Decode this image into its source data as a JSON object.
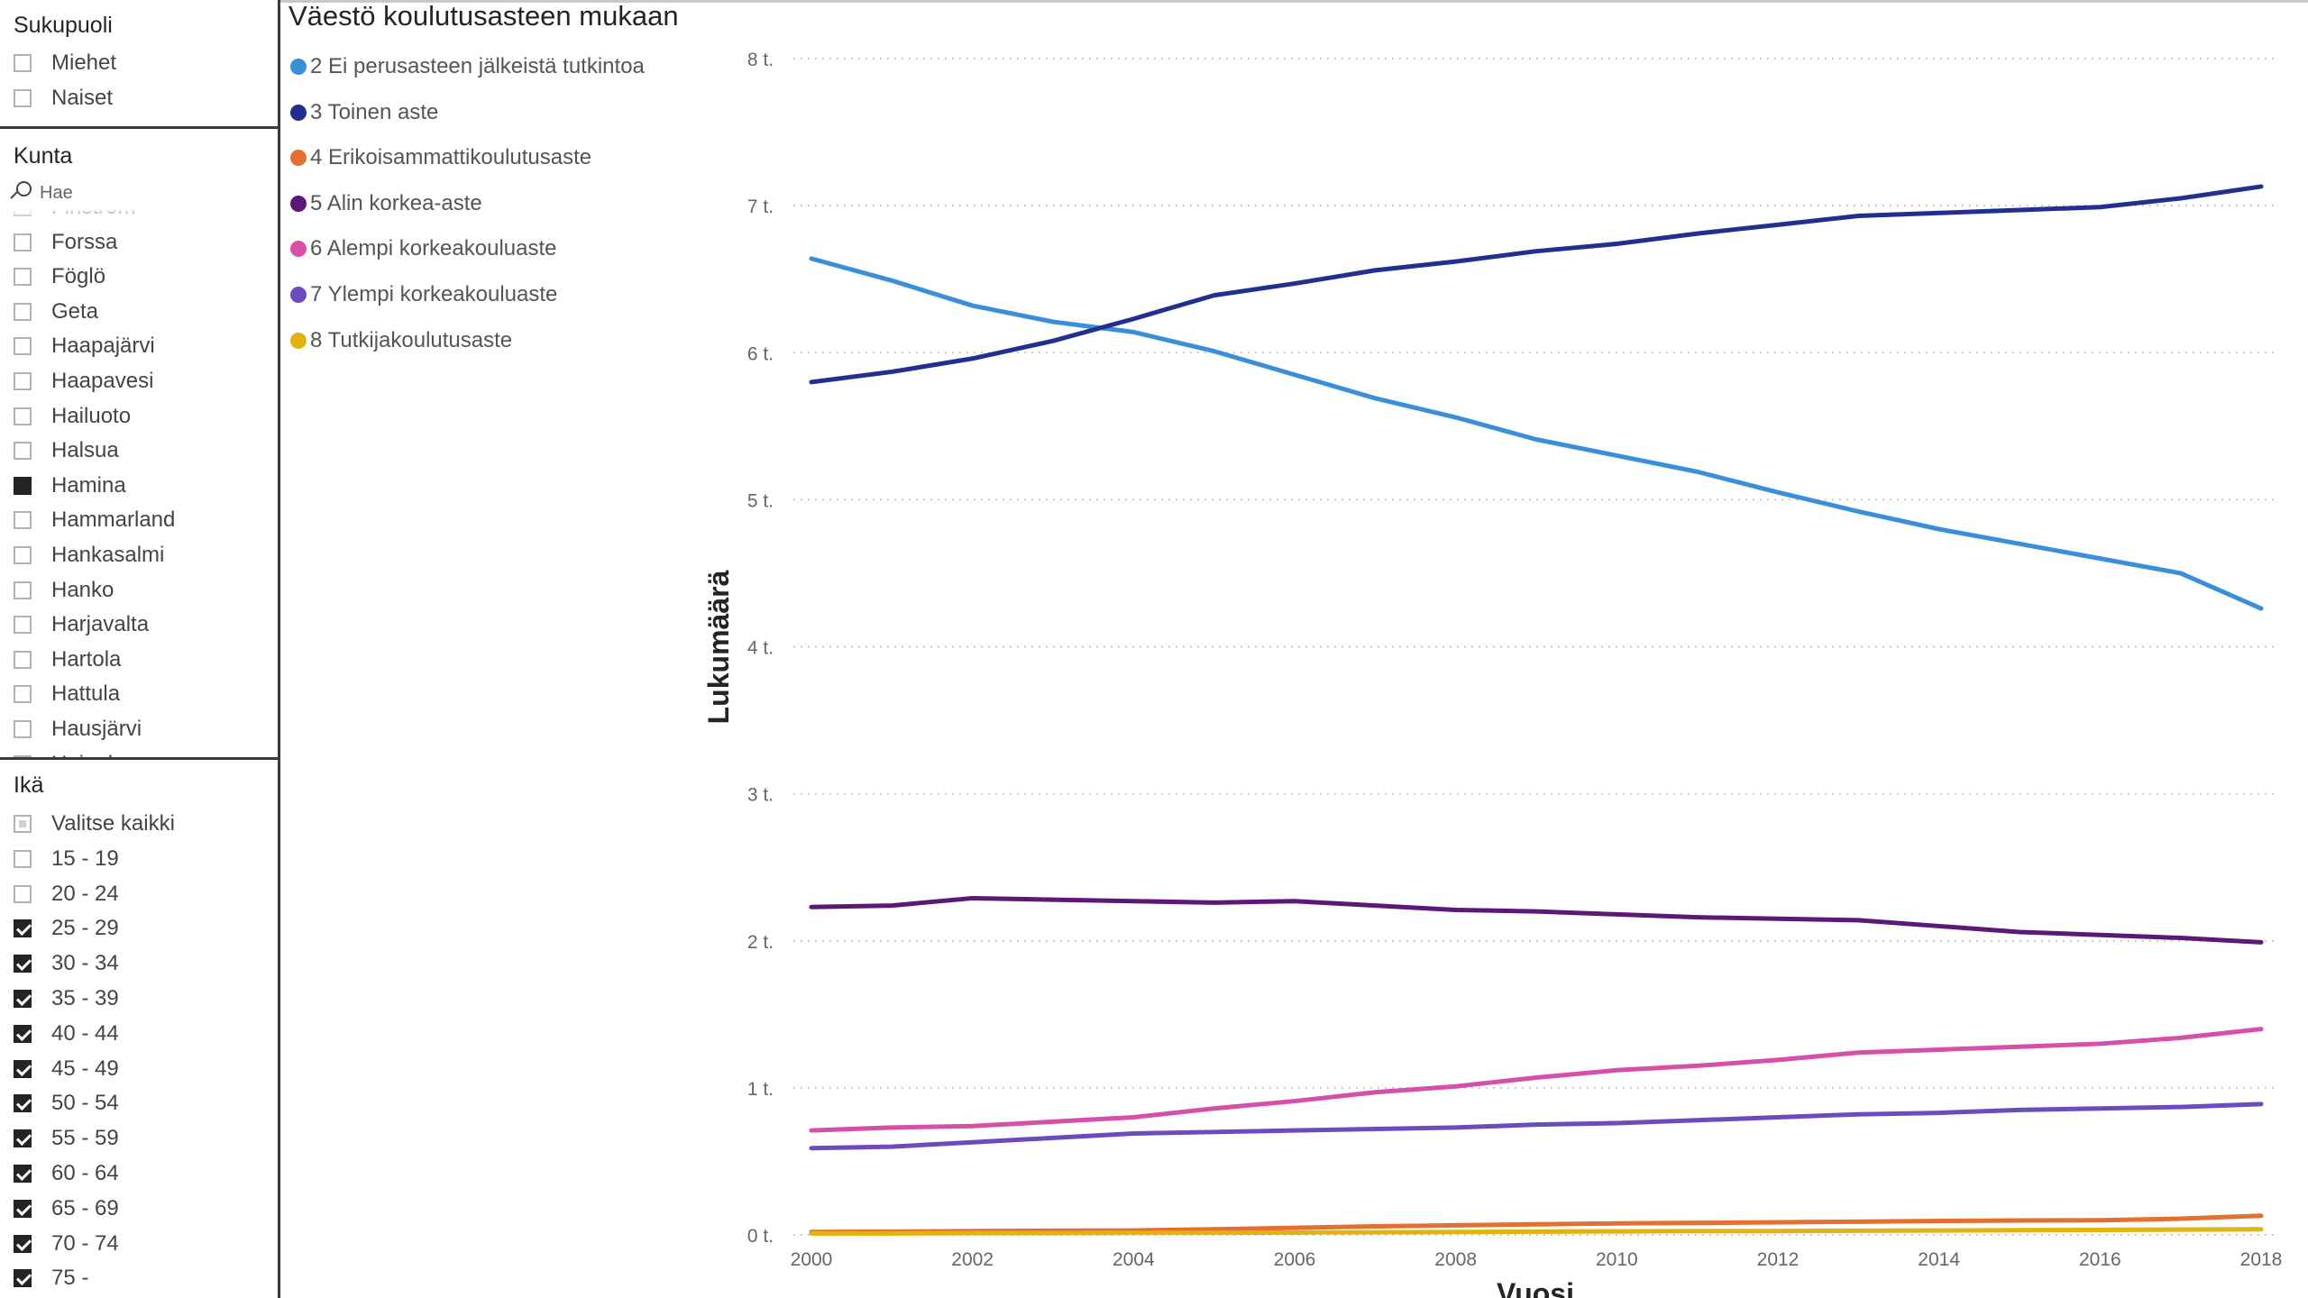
{
  "slicers": {
    "gender": {
      "title": "Sukupuoli",
      "items": [
        {
          "label": "Miehet",
          "state": "unchecked"
        },
        {
          "label": "Naiset",
          "state": "unchecked"
        }
      ]
    },
    "municipality": {
      "title": "Kunta",
      "search_placeholder": "Hae",
      "items": [
        {
          "label": "Finström",
          "state": "unchecked"
        },
        {
          "label": "Forssa",
          "state": "unchecked"
        },
        {
          "label": "Föglö",
          "state": "unchecked"
        },
        {
          "label": "Geta",
          "state": "unchecked"
        },
        {
          "label": "Haapajärvi",
          "state": "unchecked"
        },
        {
          "label": "Haapavesi",
          "state": "unchecked"
        },
        {
          "label": "Hailuoto",
          "state": "unchecked"
        },
        {
          "label": "Halsua",
          "state": "unchecked"
        },
        {
          "label": "Hamina",
          "state": "selected"
        },
        {
          "label": "Hammarland",
          "state": "unchecked"
        },
        {
          "label": "Hankasalmi",
          "state": "unchecked"
        },
        {
          "label": "Hanko",
          "state": "unchecked"
        },
        {
          "label": "Harjavalta",
          "state": "unchecked"
        },
        {
          "label": "Hartola",
          "state": "unchecked"
        },
        {
          "label": "Hattula",
          "state": "unchecked"
        },
        {
          "label": "Hausjärvi",
          "state": "unchecked"
        },
        {
          "label": "Heinola",
          "state": "unchecked"
        }
      ]
    },
    "age": {
      "title": "Ikä",
      "items": [
        {
          "label": "Valitse kaikki",
          "state": "partial"
        },
        {
          "label": "15 - 19",
          "state": "unchecked"
        },
        {
          "label": "20 - 24",
          "state": "unchecked"
        },
        {
          "label": "25 - 29",
          "state": "checked"
        },
        {
          "label": "30 - 34",
          "state": "checked"
        },
        {
          "label": "35 - 39",
          "state": "checked"
        },
        {
          "label": "40 - 44",
          "state": "checked"
        },
        {
          "label": "45 - 49",
          "state": "checked"
        },
        {
          "label": "50 - 54",
          "state": "checked"
        },
        {
          "label": "55 - 59",
          "state": "checked"
        },
        {
          "label": "60 - 64",
          "state": "checked"
        },
        {
          "label": "65 - 69",
          "state": "checked"
        },
        {
          "label": "70 - 74",
          "state": "checked"
        },
        {
          "label": "75 -",
          "state": "checked"
        }
      ]
    }
  },
  "chart_data": {
    "type": "line",
    "title": "Väestö koulutusasteen mukaan",
    "xlabel": "Vuosi",
    "ylabel": "Lukumäärä",
    "x": [
      2000,
      2001,
      2002,
      2003,
      2004,
      2005,
      2006,
      2007,
      2008,
      2009,
      2010,
      2011,
      2012,
      2013,
      2014,
      2015,
      2016,
      2017,
      2018
    ],
    "x_ticks": [
      "2000",
      "2002",
      "2004",
      "2006",
      "2008",
      "2010",
      "2012",
      "2014",
      "2016",
      "2018"
    ],
    "ylim": [
      0,
      8000
    ],
    "y_ticks": [
      {
        "value": 0,
        "label": "0 t."
      },
      {
        "value": 1000,
        "label": "1 t."
      },
      {
        "value": 2000,
        "label": "2 t."
      },
      {
        "value": 3000,
        "label": "3 t."
      },
      {
        "value": 4000,
        "label": "4 t."
      },
      {
        "value": 5000,
        "label": "5 t."
      },
      {
        "value": 6000,
        "label": "6 t."
      },
      {
        "value": 7000,
        "label": "7 t."
      },
      {
        "value": 8000,
        "label": "8 t."
      }
    ],
    "grid": true,
    "legend_position": "top-left",
    "series": [
      {
        "name": "2 Ei perusasteen jälkeistä tutkintoa",
        "color": "#3a8fdb",
        "values": [
          6640,
          6490,
          6320,
          6210,
          6140,
          6010,
          5850,
          5690,
          5560,
          5410,
          5300,
          5190,
          5050,
          4920,
          4800,
          4700,
          4600,
          4500,
          4260
        ]
      },
      {
        "name": "3 Toinen aste",
        "color": "#232f8e",
        "values": [
          5800,
          5870,
          5960,
          6080,
          6230,
          6390,
          6470,
          6560,
          6620,
          6690,
          6740,
          6810,
          6870,
          6930,
          6950,
          6970,
          6990,
          7050,
          7130
        ]
      },
      {
        "name": "4 Erikoisammattikoulutusaste",
        "color": "#e4702f",
        "values": [
          20,
          22,
          26,
          28,
          30,
          38,
          48,
          58,
          65,
          72,
          78,
          82,
          86,
          90,
          95,
          98,
          100,
          110,
          130
        ]
      },
      {
        "name": "5 Alin korkea-aste",
        "color": "#5b1876",
        "values": [
          2230,
          2240,
          2290,
          2280,
          2270,
          2260,
          2270,
          2240,
          2210,
          2200,
          2180,
          2160,
          2150,
          2140,
          2100,
          2060,
          2040,
          2020,
          1990
        ]
      },
      {
        "name": "6 Alempi korkeakouluaste",
        "color": "#d64fa8",
        "values": [
          710,
          730,
          740,
          770,
          800,
          860,
          910,
          970,
          1010,
          1070,
          1120,
          1150,
          1190,
          1240,
          1260,
          1280,
          1300,
          1340,
          1400
        ]
      },
      {
        "name": "7 Ylempi korkeakouluaste",
        "color": "#6b4cbd",
        "values": [
          590,
          600,
          630,
          660,
          690,
          700,
          710,
          720,
          730,
          750,
          760,
          780,
          800,
          820,
          830,
          850,
          860,
          870,
          890
        ]
      },
      {
        "name": "8 Tutkijakoulutusaste",
        "color": "#e2b310",
        "values": [
          10,
          10,
          12,
          12,
          14,
          14,
          16,
          18,
          20,
          22,
          24,
          26,
          26,
          28,
          30,
          32,
          34,
          36,
          38
        ]
      }
    ]
  }
}
